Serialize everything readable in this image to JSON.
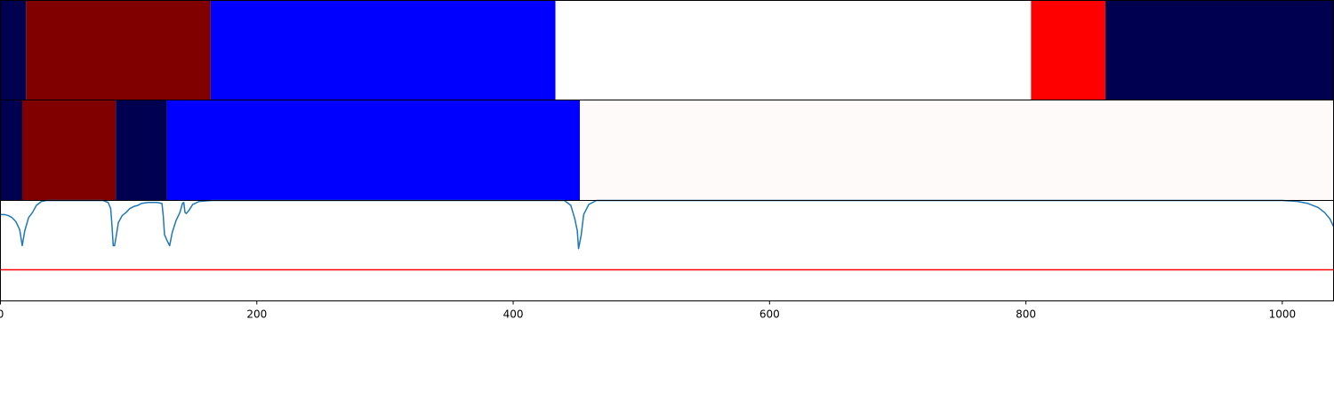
{
  "chart_data": [
    {
      "type": "segmentation",
      "x_range": [
        0,
        1040
      ],
      "segments": [
        {
          "start": 0,
          "end": 20,
          "color": "#000050"
        },
        {
          "start": 20,
          "end": 164,
          "color": "#800000"
        },
        {
          "start": 164,
          "end": 433,
          "color": "#0000ff"
        },
        {
          "start": 433,
          "end": 804,
          "color": "#ffffff"
        },
        {
          "start": 804,
          "end": 862,
          "color": "#ff0000"
        },
        {
          "start": 862,
          "end": 1040,
          "color": "#000050"
        }
      ]
    },
    {
      "type": "segmentation",
      "x_range": [
        0,
        1040
      ],
      "segments": [
        {
          "start": 0,
          "end": 17,
          "color": "#000050"
        },
        {
          "start": 17,
          "end": 90,
          "color": "#800000"
        },
        {
          "start": 90,
          "end": 130,
          "color": "#000050"
        },
        {
          "start": 130,
          "end": 452,
          "color": "#0000ff"
        },
        {
          "start": 452,
          "end": 1040,
          "color": "#fffafa"
        }
      ]
    },
    {
      "type": "line",
      "xlim": [
        0,
        1040
      ],
      "ylim": [
        0,
        1
      ],
      "xticks": [
        0,
        200,
        400,
        600,
        800,
        1000
      ],
      "series": [
        {
          "color": "#1f77b4",
          "points": [
            [
              0,
              0.86
            ],
            [
              3,
              0.86
            ],
            [
              6,
              0.85
            ],
            [
              9,
              0.83
            ],
            [
              12,
              0.79
            ],
            [
              15,
              0.71
            ],
            [
              17,
              0.55
            ],
            [
              19,
              0.7
            ],
            [
              22,
              0.83
            ],
            [
              25,
              0.88
            ],
            [
              28,
              0.95
            ],
            [
              32,
              0.99
            ],
            [
              36,
              1.0
            ],
            [
              60,
              1.0
            ],
            [
              80,
              1.0
            ],
            [
              84,
              0.98
            ],
            [
              86,
              0.92
            ],
            [
              87,
              0.75
            ],
            [
              88,
              0.55
            ],
            [
              89,
              0.55
            ],
            [
              90,
              0.62
            ],
            [
              92,
              0.78
            ],
            [
              95,
              0.85
            ],
            [
              98,
              0.88
            ],
            [
              101,
              0.92
            ],
            [
              104,
              0.94
            ],
            [
              107,
              0.95
            ],
            [
              110,
              0.97
            ],
            [
              115,
              0.98
            ],
            [
              122,
              0.98
            ],
            [
              126,
              0.97
            ],
            [
              127,
              0.85
            ],
            [
              128,
              0.66
            ],
            [
              130,
              0.6
            ],
            [
              132,
              0.55
            ],
            [
              134,
              0.68
            ],
            [
              137,
              0.8
            ],
            [
              140,
              0.88
            ],
            [
              142,
              0.97
            ],
            [
              143,
              0.98
            ],
            [
              144,
              0.88
            ],
            [
              145,
              0.87
            ],
            [
              147,
              0.9
            ],
            [
              150,
              0.96
            ],
            [
              155,
              0.99
            ],
            [
              165,
              1.0
            ],
            [
              300,
              1.0
            ],
            [
              440,
              1.0
            ],
            [
              445,
              0.95
            ],
            [
              448,
              0.82
            ],
            [
              450,
              0.7
            ],
            [
              451,
              0.52
            ],
            [
              453,
              0.65
            ],
            [
              455,
              0.86
            ],
            [
              459,
              0.96
            ],
            [
              465,
              1.0
            ],
            [
              700,
              1.0
            ],
            [
              1000,
              1.0
            ],
            [
              1012,
              0.99
            ],
            [
              1020,
              0.97
            ],
            [
              1028,
              0.93
            ],
            [
              1033,
              0.88
            ],
            [
              1037,
              0.82
            ],
            [
              1040,
              0.74
            ]
          ]
        }
      ],
      "hlines": [
        {
          "y": 0.31,
          "color": "#ff0000"
        }
      ]
    }
  ]
}
